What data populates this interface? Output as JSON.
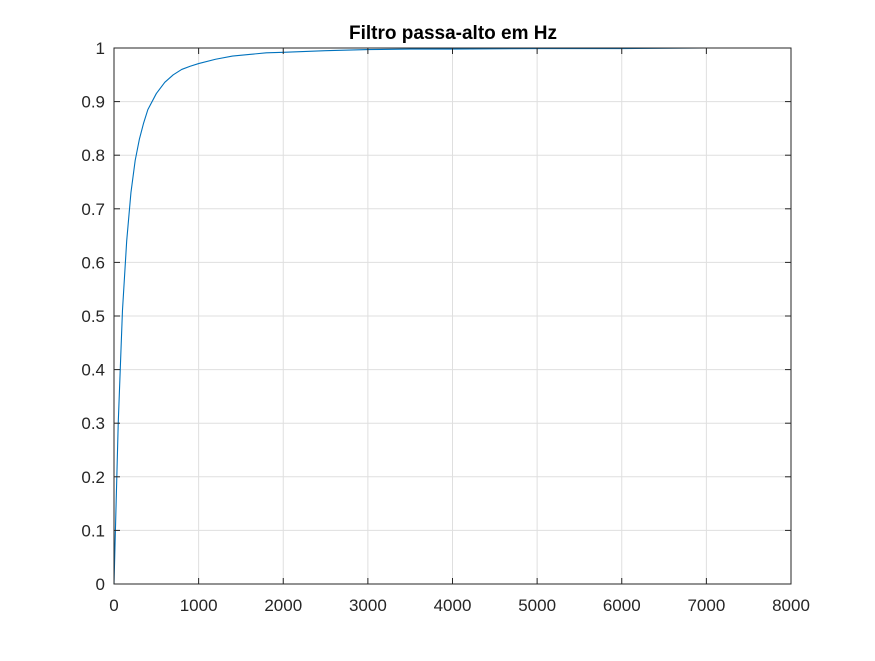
{
  "chart_data": {
    "type": "line",
    "title": "Filtro passa-alto em Hz",
    "xlabel": "",
    "ylabel": "",
    "xlim": [
      0,
      8000
    ],
    "ylim": [
      0,
      1
    ],
    "grid": true,
    "x_ticks": [
      "0",
      "1000",
      "2000",
      "3000",
      "4000",
      "5000",
      "6000",
      "7000",
      "8000"
    ],
    "y_ticks": [
      "0",
      "0.1",
      "0.2",
      "0.3",
      "0.4",
      "0.5",
      "0.6",
      "0.7",
      "0.8",
      "0.9",
      "1"
    ],
    "series": [
      {
        "color": "#0072bd",
        "x": [
          0,
          50,
          100,
          150,
          200,
          250,
          300,
          350,
          400,
          500,
          600,
          700,
          800,
          900,
          1000,
          1200,
          1400,
          1600,
          1800,
          2000,
          2500,
          3000,
          3500,
          4000,
          5000,
          6000,
          7000,
          7800
        ],
        "y": [
          0,
          0.3,
          0.51,
          0.64,
          0.73,
          0.79,
          0.83,
          0.86,
          0.885,
          0.915,
          0.936,
          0.95,
          0.96,
          0.966,
          0.971,
          0.979,
          0.985,
          0.988,
          0.991,
          0.992,
          0.995,
          0.997,
          0.998,
          0.998,
          0.999,
          0.999,
          1.0,
          1.0
        ]
      }
    ]
  },
  "colors": {
    "line": "#0072bd",
    "grid": "#dfdfdf",
    "axes": "#262626"
  }
}
